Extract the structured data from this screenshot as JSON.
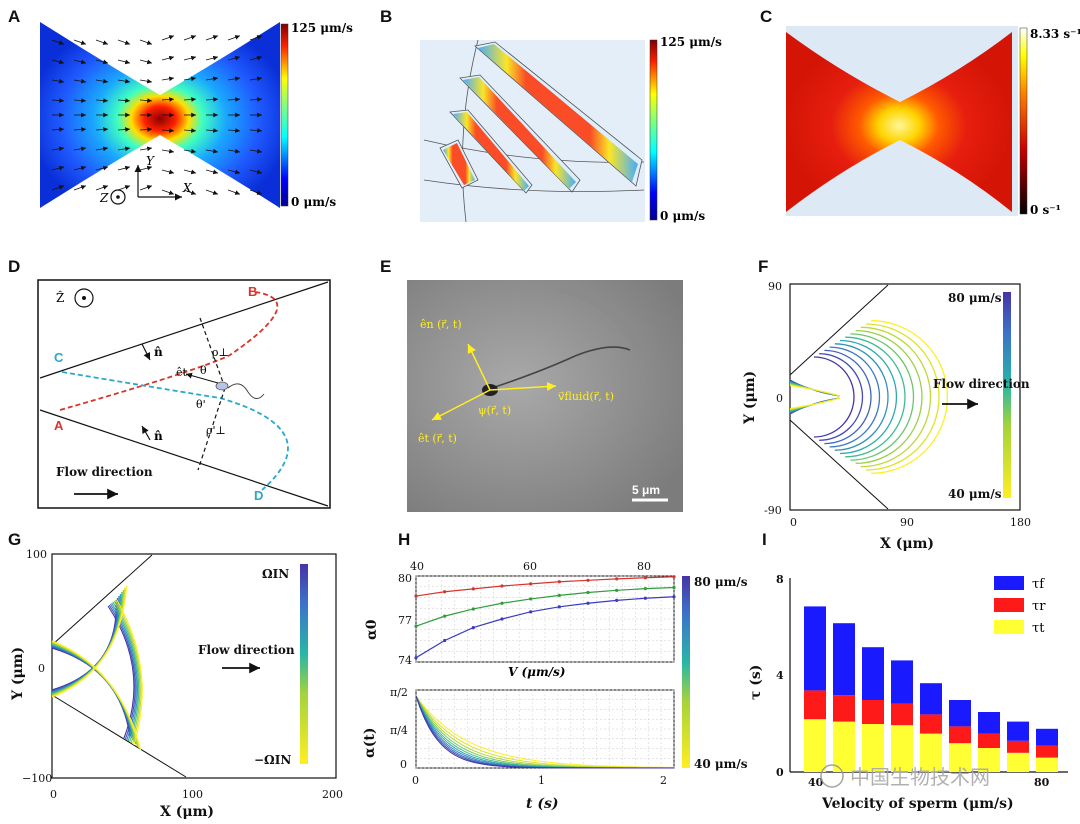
{
  "figure": {
    "panel_labels": [
      "A",
      "B",
      "C",
      "D",
      "E",
      "F",
      "G",
      "H",
      "I"
    ],
    "panel_A": {
      "colorbar_max": "125 μm/s",
      "colorbar_min": "0 μm/s",
      "axis_y": "Y",
      "axis_x": "X",
      "axis_z": "Z"
    },
    "panel_B": {
      "colorbar_max": "125 μm/s",
      "colorbar_min": "0 μm/s"
    },
    "panel_C": {
      "colorbar_max": "8.33 s⁻¹",
      "colorbar_min": "0 s⁻¹"
    },
    "panel_D": {
      "z_label": "Ẑ",
      "point_A": "A",
      "point_B": "B",
      "point_C": "C",
      "point_D": "D",
      "n_upper": "n̂",
      "n_lower": "n̂",
      "rho_perp": "ρ⊥",
      "rho_perp_prime": "ρ'⊥",
      "theta": "θ",
      "theta_prime": "θ'",
      "e_t": "êt",
      "flow_direction": "Flow direction",
      "colors": {
        "red_path": "#d7352b",
        "cyan_path": "#2aa8c9"
      }
    },
    "panel_E": {
      "e_n": "ên (r⃗, t)",
      "e_t": "êt (r⃗, t)",
      "psi": "ψ(r⃗, t)",
      "v_fluid": "v⃗fluid(r⃗, t)",
      "scale_bar": "5 μm"
    },
    "panel_F": {
      "y_label": "Y (μm)",
      "x_label": "X (μm)",
      "y_ticks": [
        "90",
        "0",
        "-90"
      ],
      "x_ticks": [
        "0",
        "90",
        "180"
      ],
      "colorbar_max": "80 μm/s",
      "colorbar_min": "40 μm/s",
      "flow_direction": "Flow direction"
    },
    "panel_G": {
      "y_label": "Y (μm)",
      "x_label": "X (μm)",
      "y_ticks": [
        "100",
        "0",
        "−100"
      ],
      "x_ticks": [
        "0",
        "100",
        "200"
      ],
      "colorbar_max": "ΩIN",
      "colorbar_min": "−ΩIN",
      "flow_direction": "Flow direction"
    },
    "panel_H": {
      "top": {
        "y_label": "α0",
        "x_label": "V (μm/s)",
        "y_ticks": [
          "80",
          "77",
          "74"
        ],
        "x_ticks": [
          "40",
          "60",
          "80"
        ]
      },
      "bottom": {
        "y_label": "α(t)",
        "x_label": "t (s)",
        "y_ticks": [
          "π/2",
          "π/4",
          "0"
        ],
        "x_ticks": [
          "0",
          "1",
          "2"
        ]
      },
      "colorbar_max": "80 μm/s",
      "colorbar_min": "40 μm/s"
    },
    "panel_I": {
      "y_label": "τ (s)",
      "x_label": "Velocity of sperm (μm/s)",
      "y_ticks": [
        "0",
        "4",
        "8"
      ],
      "x_ticks_visible": [
        "40",
        "80"
      ],
      "legend": [
        "τf",
        "τr",
        "τt"
      ],
      "colors": {
        "tau_f": "#1a1aff",
        "tau_r": "#ff1a1a",
        "tau_t": "#ffff33"
      }
    },
    "watermark": "中国生物技术网"
  },
  "chart_data": [
    {
      "panel": "H-top",
      "type": "line",
      "title": "",
      "xlabel": "V (μm/s)",
      "ylabel": "α0",
      "xlim": [
        40,
        85
      ],
      "ylim": [
        74,
        80
      ],
      "x": [
        40,
        45,
        50,
        55,
        60,
        65,
        70,
        75,
        80,
        85
      ],
      "series": [
        {
          "name": "red",
          "color": "#d7352b",
          "values": [
            78.6,
            78.9,
            79.1,
            79.3,
            79.45,
            79.6,
            79.7,
            79.8,
            79.88,
            79.95
          ]
        },
        {
          "name": "green",
          "color": "#2f9e3a",
          "values": [
            76.5,
            77.2,
            77.7,
            78.1,
            78.4,
            78.65,
            78.85,
            79.0,
            79.12,
            79.2
          ]
        },
        {
          "name": "blue",
          "color": "#3b3bc4",
          "values": [
            74.3,
            75.5,
            76.4,
            77.0,
            77.5,
            77.85,
            78.1,
            78.3,
            78.45,
            78.55
          ]
        }
      ]
    },
    {
      "panel": "I",
      "type": "bar",
      "xlabel": "Velocity of sperm (μm/s)",
      "ylabel": "τ (s)",
      "ylim": [
        0,
        8
      ],
      "categories": [
        "40",
        "45",
        "50",
        "55",
        "60",
        "65",
        "70",
        "75",
        "80"
      ],
      "series": [
        {
          "name": "τt",
          "values": [
            2.2,
            2.1,
            2.0,
            1.95,
            1.6,
            1.2,
            1.0,
            0.8,
            0.6
          ]
        },
        {
          "name": "τr",
          "values": [
            1.2,
            1.1,
            1.0,
            0.9,
            0.8,
            0.7,
            0.6,
            0.5,
            0.5
          ]
        },
        {
          "name": "τf",
          "values": [
            3.5,
            3.0,
            2.2,
            1.8,
            1.3,
            1.1,
            0.9,
            0.8,
            0.7
          ]
        }
      ]
    }
  ]
}
